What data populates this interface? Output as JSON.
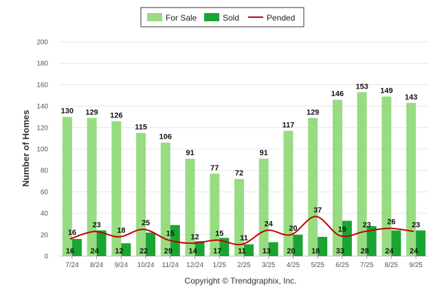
{
  "chart_data": {
    "type": "bar",
    "ylabel": "Number of Homes",
    "xlabel": "",
    "ylim": [
      0,
      200
    ],
    "yticks": [
      0,
      20,
      40,
      60,
      80,
      100,
      120,
      140,
      160,
      180,
      200
    ],
    "categories": [
      "7/24",
      "8/24",
      "9/24",
      "10/24",
      "11/24",
      "12/24",
      "1/25",
      "2/25",
      "3/25",
      "4/25",
      "5/25",
      "6/25",
      "7/25",
      "8/25",
      "9/25"
    ],
    "series": [
      {
        "name": "For Sale",
        "kind": "bar",
        "color": "#98dc82",
        "values": [
          130,
          129,
          126,
          115,
          106,
          91,
          77,
          72,
          91,
          117,
          129,
          146,
          153,
          149,
          143
        ]
      },
      {
        "name": "Sold",
        "kind": "bar",
        "color": "#1aa533",
        "values": [
          16,
          24,
          12,
          22,
          29,
          14,
          17,
          11,
          13,
          20,
          18,
          33,
          28,
          24,
          24
        ]
      },
      {
        "name": "Pended",
        "kind": "line",
        "color": "#c00000",
        "values": [
          16,
          23,
          18,
          25,
          15,
          12,
          15,
          11,
          24,
          20,
          37,
          19,
          23,
          26,
          23
        ]
      }
    ],
    "legend": [
      "For Sale",
      "Sold",
      "Pended"
    ],
    "copyright": "Copyright © Trendgraphix, Inc."
  }
}
